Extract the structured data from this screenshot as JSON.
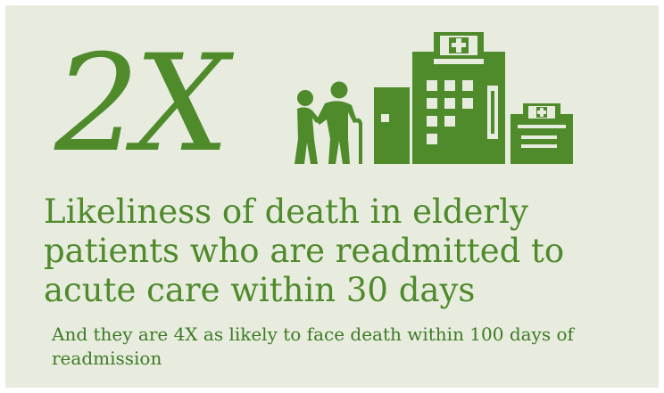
{
  "infographic": {
    "stat": "2X",
    "headline": "Likeliness of death in elderly patients who are readmitted to acute care within 30 days",
    "subtext": "And they are 4X as likely to face death within 100 days of readmission"
  },
  "icons": [
    "elderly-couple-icon",
    "hospital-building-icon",
    "clinic-building-icon"
  ],
  "colors": {
    "background": "#e7ecdf",
    "accent": "#4f8a2b",
    "accent_dark": "#3e7a24"
  }
}
